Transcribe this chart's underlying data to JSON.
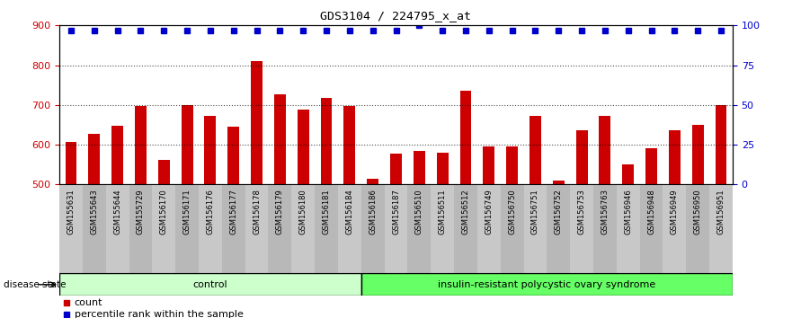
{
  "title": "GDS3104 / 224795_x_at",
  "samples": [
    "GSM155631",
    "GSM155643",
    "GSM155644",
    "GSM155729",
    "GSM156170",
    "GSM156171",
    "GSM156176",
    "GSM156177",
    "GSM156178",
    "GSM156179",
    "GSM156180",
    "GSM156181",
    "GSM156184",
    "GSM156186",
    "GSM156187",
    "GSM156510",
    "GSM156511",
    "GSM156512",
    "GSM156749",
    "GSM156750",
    "GSM156751",
    "GSM156752",
    "GSM156753",
    "GSM156763",
    "GSM156946",
    "GSM156948",
    "GSM156949",
    "GSM156950",
    "GSM156951"
  ],
  "counts": [
    607,
    627,
    647,
    697,
    562,
    700,
    672,
    645,
    810,
    727,
    688,
    718,
    697,
    515,
    578,
    585,
    580,
    735,
    595,
    595,
    672,
    510,
    637,
    672,
    550,
    590,
    637,
    651,
    700
  ],
  "percentile": [
    97,
    97,
    97,
    97,
    97,
    97,
    97,
    97,
    97,
    97,
    97,
    97,
    97,
    97,
    97,
    100,
    97,
    97,
    97,
    97,
    97,
    97,
    97,
    97,
    97,
    97,
    97,
    97,
    97
  ],
  "control_count": 13,
  "group1_label": "control",
  "group2_label": "insulin-resistant polycystic ovary syndrome",
  "group1_color": "#ccffcc",
  "group2_color": "#66ff66",
  "bar_color": "#cc0000",
  "marker_color": "#0000cc",
  "ylim_left": [
    500,
    900
  ],
  "ylim_right": [
    0,
    100
  ],
  "yticks_left": [
    500,
    600,
    700,
    800,
    900
  ],
  "yticks_right": [
    0,
    25,
    50,
    75,
    100
  ],
  "grid_lines": [
    600,
    700,
    800
  ],
  "background_color": "#ffffff",
  "left_tick_color": "#cc0000",
  "right_tick_color": "#0000cc",
  "disease_state_label": "disease state",
  "legend_count_label": "count",
  "legend_percentile_label": "percentile rank within the sample",
  "xtick_bg_color": "#c8c8c8",
  "xtick_alt_color": "#b8b8b8"
}
